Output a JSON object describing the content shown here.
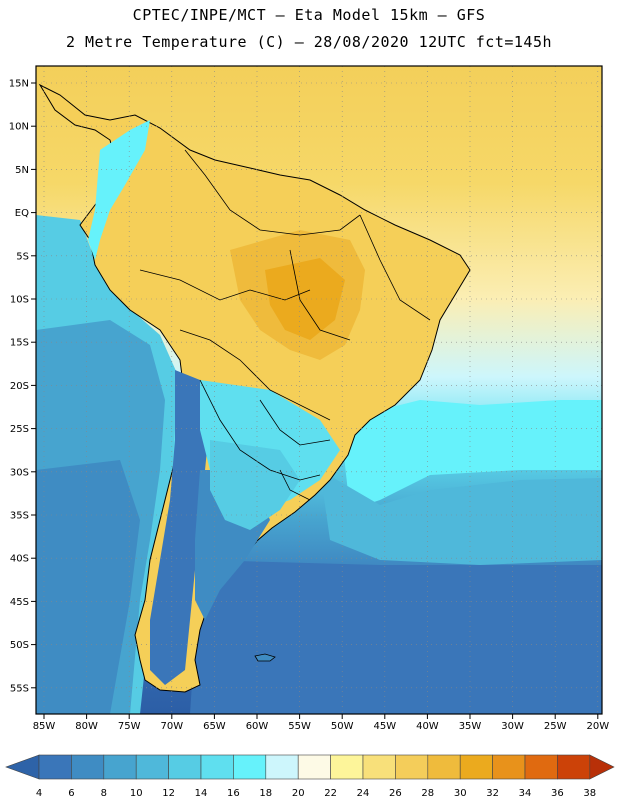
{
  "title": {
    "line1": "CPTEC/INPE/MCT –  Eta Model 15km – GFS",
    "line2": "2 Metre Temperature (C) – 28/08/2020 12UTC fct=145h"
  },
  "axes": {
    "lat_labels": [
      "15N",
      "10N",
      "5N",
      "EQ",
      "5S",
      "10S",
      "15S",
      "20S",
      "25S",
      "30S",
      "35S",
      "40S",
      "45S",
      "50S",
      "55S"
    ],
    "lon_labels": [
      "85W",
      "80W",
      "75W",
      "70W",
      "65W",
      "60W",
      "55W",
      "50W",
      "45W",
      "40W",
      "35W",
      "30W",
      "25W",
      "20W"
    ]
  },
  "colorbar": {
    "ticks": [
      "4",
      "6",
      "8",
      "10",
      "12",
      "14",
      "16",
      "18",
      "20",
      "22",
      "24",
      "26",
      "28",
      "30",
      "32",
      "34",
      "36",
      "38"
    ],
    "colors": [
      "#3a76b9",
      "#3f8cc3",
      "#47a4cf",
      "#4fb8da",
      "#56cce4",
      "#5fdfef",
      "#66f2fb",
      "#cdf6fc",
      "#fdfae6",
      "#fdf59a",
      "#f8e07a",
      "#f4cd5a",
      "#efbb3c",
      "#ebaa1e",
      "#e8921b",
      "#e06a10",
      "#cc4208"
    ],
    "low_color": "#2e63a8",
    "high_color": "#b83008"
  },
  "map": {
    "ocean_cold": "#2c5ea6",
    "ocean_warm": "#f3cf5a",
    "border_color": "#000000"
  }
}
